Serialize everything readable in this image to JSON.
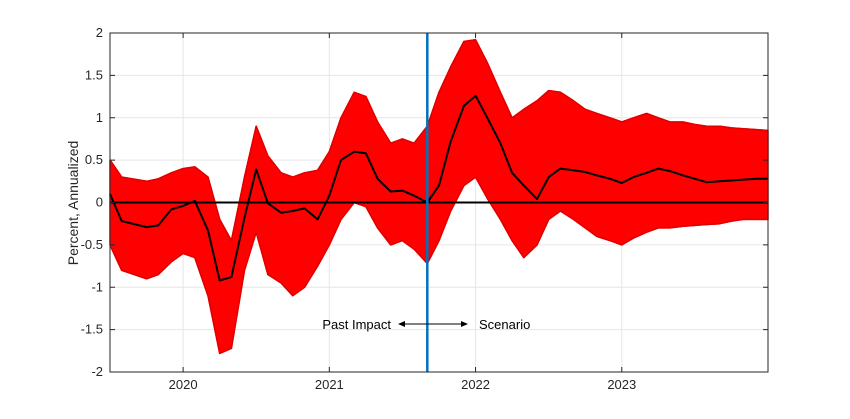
{
  "chart_data": {
    "type": "line",
    "title": "",
    "xlabel": "",
    "ylabel": "Percent, Annualized",
    "xlim": [
      2019.5,
      2024.0
    ],
    "ylim": [
      -2,
      2
    ],
    "grid": true,
    "yticks": [
      2,
      1.5,
      1,
      0.5,
      0,
      -0.5,
      -1,
      -1.5,
      -2
    ],
    "ytick_labels": [
      "2",
      "1.5",
      "1",
      "0.5",
      "0",
      "-0.5",
      "-1",
      "-1.5",
      "-2"
    ],
    "xticks": [
      2020,
      2021,
      2022,
      2023
    ],
    "xtick_labels": [
      "2020",
      "2021",
      "2022",
      "2023"
    ],
    "divider_x": 2021.67,
    "annotations": {
      "left": "Past Impact",
      "right": "Scenario"
    },
    "colors": {
      "band": "#ff0000",
      "median": "#000000",
      "zero_line": "#000000",
      "divider": "#0072bd",
      "grid": "#e6e6e6"
    },
    "series": [
      {
        "role": "median",
        "x": [
          2019.5,
          2019.58,
          2019.75,
          2019.83,
          2019.92,
          2020.0,
          2020.08,
          2020.17,
          2020.25,
          2020.33,
          2020.42,
          2020.5,
          2020.58,
          2020.67,
          2020.75,
          2020.83,
          2020.92,
          2021.0,
          2021.08,
          2021.17,
          2021.25,
          2021.33,
          2021.42,
          2021.5,
          2021.58,
          2021.67,
          2021.75,
          2021.83,
          2021.92,
          2022.0,
          2022.08,
          2022.17,
          2022.25,
          2022.33,
          2022.42,
          2022.5,
          2022.58,
          2022.67,
          2022.75,
          2022.83,
          2022.92,
          2023.0,
          2023.08,
          2023.17,
          2023.25,
          2023.33,
          2023.42,
          2023.5,
          2023.58,
          2023.67,
          2023.75,
          2023.83,
          2023.92,
          2024.0
        ],
        "y": [
          0.1,
          -0.22,
          -0.29,
          -0.27,
          -0.08,
          -0.04,
          0.02,
          -0.33,
          -0.92,
          -0.88,
          -0.18,
          0.39,
          -0.01,
          -0.12,
          -0.1,
          -0.07,
          -0.2,
          0.08,
          0.5,
          0.6,
          0.58,
          0.28,
          0.13,
          0.14,
          0.08,
          0.0,
          0.2,
          0.72,
          1.14,
          1.26,
          1.0,
          0.7,
          0.35,
          0.2,
          0.04,
          0.3,
          0.4,
          0.38,
          0.36,
          0.32,
          0.28,
          0.23,
          0.3,
          0.35,
          0.4,
          0.37,
          0.32,
          0.28,
          0.24,
          0.25,
          0.26,
          0.27,
          0.28,
          0.28
        ]
      },
      {
        "role": "band-upper",
        "x": [
          2019.5,
          2019.58,
          2019.75,
          2019.83,
          2019.92,
          2020.0,
          2020.08,
          2020.17,
          2020.25,
          2020.33,
          2020.42,
          2020.5,
          2020.58,
          2020.67,
          2020.75,
          2020.83,
          2020.92,
          2021.0,
          2021.08,
          2021.17,
          2021.25,
          2021.33,
          2021.42,
          2021.5,
          2021.58,
          2021.67,
          2021.75,
          2021.83,
          2021.92,
          2022.0,
          2022.08,
          2022.17,
          2022.25,
          2022.33,
          2022.42,
          2022.5,
          2022.58,
          2022.67,
          2022.75,
          2022.83,
          2022.92,
          2023.0,
          2023.08,
          2023.17,
          2023.25,
          2023.33,
          2023.42,
          2023.5,
          2023.58,
          2023.67,
          2023.75,
          2023.83,
          2023.92,
          2024.0
        ],
        "y": [
          0.5,
          0.3,
          0.25,
          0.28,
          0.35,
          0.4,
          0.42,
          0.3,
          -0.2,
          -0.45,
          0.3,
          0.9,
          0.55,
          0.35,
          0.3,
          0.35,
          0.38,
          0.6,
          1.0,
          1.3,
          1.25,
          0.95,
          0.7,
          0.75,
          0.7,
          0.9,
          1.3,
          1.6,
          1.9,
          1.92,
          1.65,
          1.3,
          1.0,
          1.1,
          1.2,
          1.32,
          1.3,
          1.2,
          1.1,
          1.05,
          1.0,
          0.95,
          1.0,
          1.05,
          1.0,
          0.95,
          0.95,
          0.92,
          0.9,
          0.9,
          0.88,
          0.87,
          0.86,
          0.85
        ]
      },
      {
        "role": "band-lower",
        "x": [
          2019.5,
          2019.58,
          2019.75,
          2019.83,
          2019.92,
          2020.0,
          2020.08,
          2020.17,
          2020.25,
          2020.33,
          2020.42,
          2020.5,
          2020.58,
          2020.67,
          2020.75,
          2020.83,
          2020.92,
          2021.0,
          2021.08,
          2021.17,
          2021.25,
          2021.33,
          2021.42,
          2021.5,
          2021.58,
          2021.67,
          2021.75,
          2021.83,
          2021.92,
          2022.0,
          2022.08,
          2022.17,
          2022.25,
          2022.33,
          2022.42,
          2022.5,
          2022.58,
          2022.67,
          2022.75,
          2022.83,
          2022.92,
          2023.0,
          2023.08,
          2023.17,
          2023.25,
          2023.33,
          2023.42,
          2023.5,
          2023.58,
          2023.67,
          2023.75,
          2023.83,
          2023.92,
          2024.0
        ],
        "y": [
          -0.5,
          -0.8,
          -0.9,
          -0.85,
          -0.7,
          -0.6,
          -0.65,
          -1.1,
          -1.78,
          -1.72,
          -0.8,
          -0.35,
          -0.85,
          -0.95,
          -1.1,
          -1.0,
          -0.75,
          -0.5,
          -0.2,
          0.0,
          -0.05,
          -0.3,
          -0.5,
          -0.45,
          -0.55,
          -0.72,
          -0.45,
          -0.1,
          0.2,
          0.3,
          0.05,
          -0.2,
          -0.45,
          -0.65,
          -0.5,
          -0.2,
          -0.1,
          -0.2,
          -0.3,
          -0.4,
          -0.45,
          -0.5,
          -0.42,
          -0.35,
          -0.3,
          -0.3,
          -0.28,
          -0.27,
          -0.26,
          -0.25,
          -0.22,
          -0.2,
          -0.2,
          -0.2
        ]
      }
    ]
  }
}
